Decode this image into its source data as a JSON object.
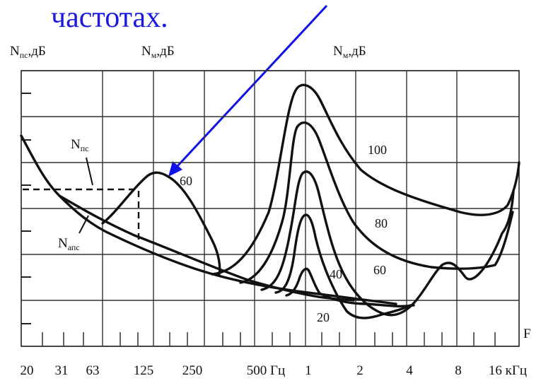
{
  "caption": "частотах.",
  "chart_data": {
    "type": "line",
    "title": "",
    "x_tick_labels": [
      "20",
      "31",
      "63",
      "125",
      "250",
      "500 Гц",
      "1",
      "2",
      "4",
      "8",
      "16 кГц"
    ],
    "x_axis_symbol": "F",
    "y_axis_labels": {
      "left": "N",
      "left_sub": "пс",
      "left_unit": ",дБ",
      "mid": "N",
      "mid_sub": "м",
      "mid_unit": ",дБ",
      "right": "N",
      "right_sub": "м",
      "right_unit": ",дБ"
    },
    "curve_labels": {
      "nps": "N",
      "nps_sub": "пс",
      "naps": "N",
      "naps_sub": "апс",
      "l60_low": "60",
      "l100": "100",
      "l80": "80",
      "l60_high": "60",
      "l40": "40",
      "l20": "20"
    },
    "grid": true,
    "x_scale": "log-octave",
    "series": [
      {
        "name": "N пс",
        "x": [
          "20",
          "31",
          "63",
          "125",
          "250",
          "500 Гц",
          "1",
          "2",
          "4",
          "8",
          "16 кГц"
        ],
        "values_note_free": true
      },
      {
        "name": "N апс"
      }
    ]
  }
}
